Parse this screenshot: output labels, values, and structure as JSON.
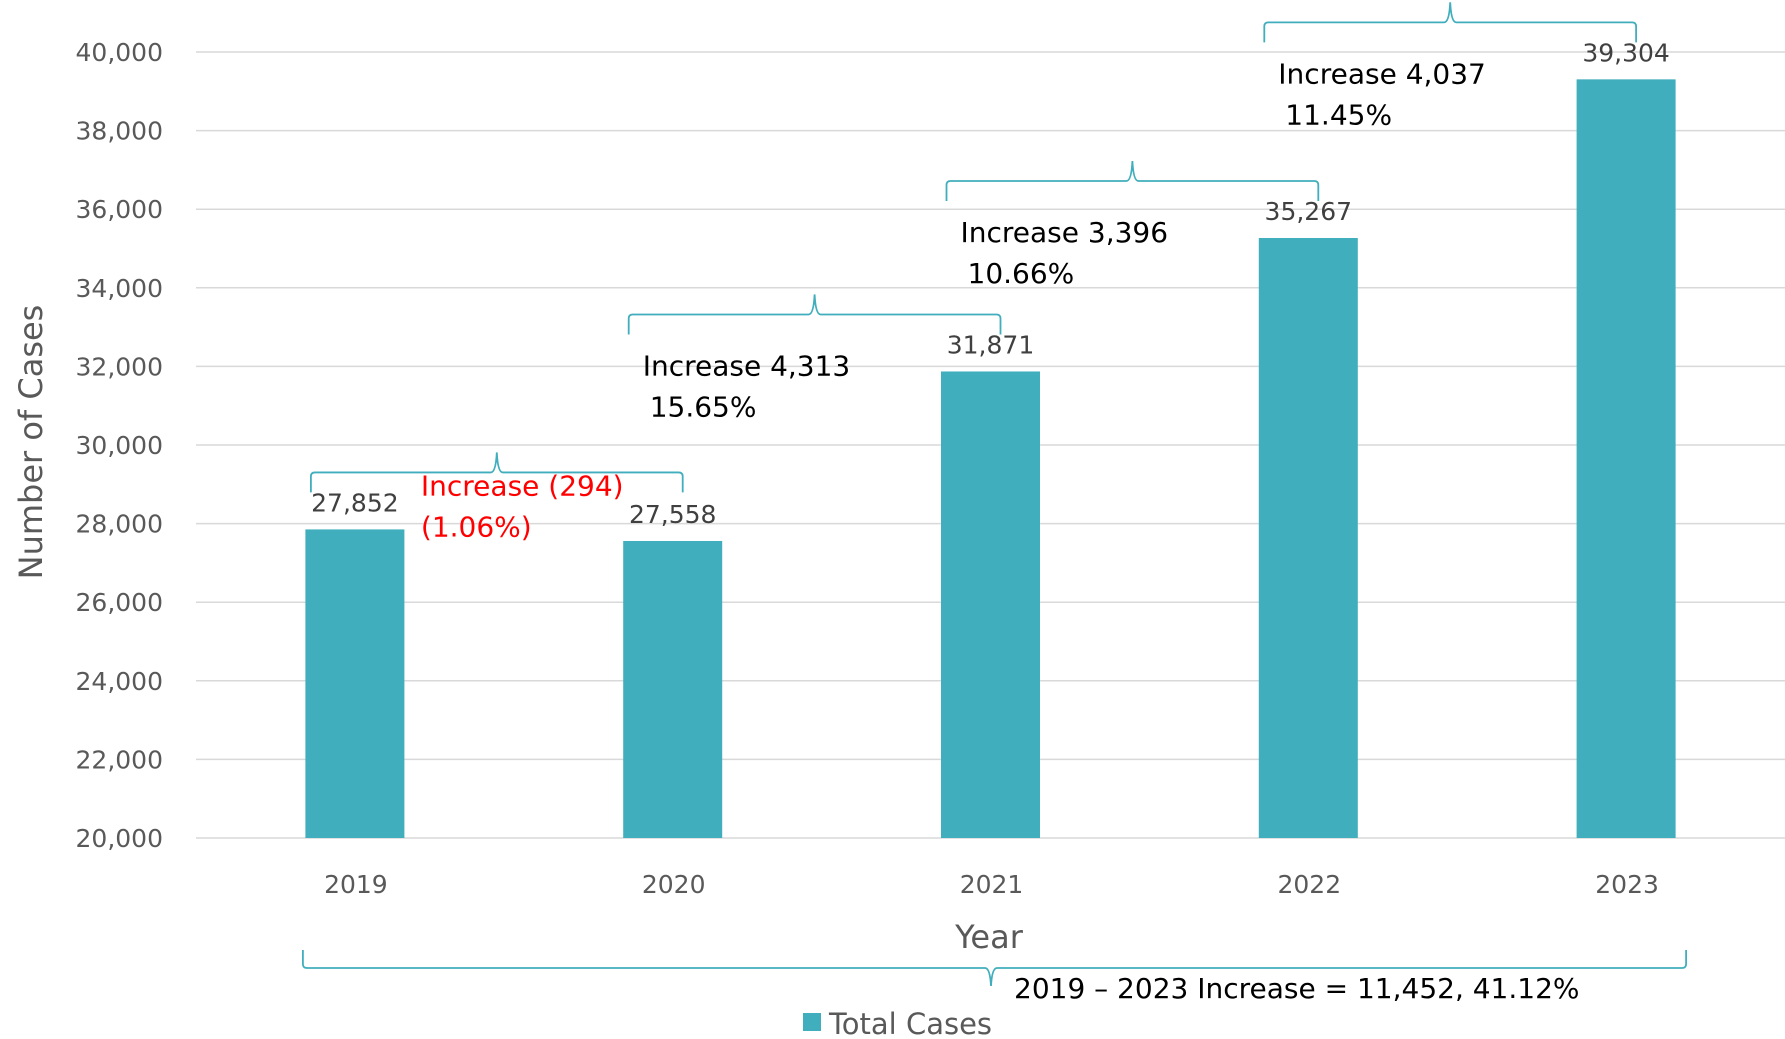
{
  "chart_data": {
    "type": "bar",
    "categories": [
      "2019",
      "2020",
      "2021",
      "2022",
      "2023"
    ],
    "series": [
      {
        "name": "Total Cases",
        "values": [
          27852,
          27558,
          31871,
          35267,
          39304
        ],
        "color": "#40aebc"
      }
    ],
    "data_labels": [
      "27,852",
      "27,558",
      "31,871",
      "35,267",
      "39,304"
    ],
    "xlabel": "Year",
    "ylabel": "Number of Cases",
    "ylim": [
      20000,
      40000
    ],
    "yticks": [
      20000,
      22000,
      24000,
      26000,
      28000,
      30000,
      32000,
      34000,
      36000,
      38000,
      40000
    ],
    "ytick_labels": [
      "20,000",
      "22,000",
      "24,000",
      "26,000",
      "28,000",
      "30,000",
      "32,000",
      "34,000",
      "36,000",
      "38,000",
      "40,000"
    ],
    "grid": true,
    "legend": {
      "placement": "bottom-center",
      "entries": [
        "Total Cases"
      ]
    },
    "annotations": [
      {
        "from": "2019",
        "to": "2020",
        "line1": "Increase (294)",
        "line2": "(1.06%)",
        "negative": true
      },
      {
        "from": "2020",
        "to": "2021",
        "line1": "Increase 4,313",
        "line2": "15.65%",
        "negative": false
      },
      {
        "from": "2021",
        "to": "2022",
        "line1": "Increase 3,396",
        "line2": "10.66%",
        "negative": false
      },
      {
        "from": "2022",
        "to": "2023",
        "line1": "Increase 4,037",
        "line2": "11.45%",
        "negative": false
      }
    ],
    "total_annotation": "2019 – 2023 Increase = 11,452, 41.12%",
    "colors": {
      "bar": "#40aebc",
      "bracket": "#40aebc",
      "grid": "#d9d9d9",
      "negative": "#ff0000"
    }
  }
}
